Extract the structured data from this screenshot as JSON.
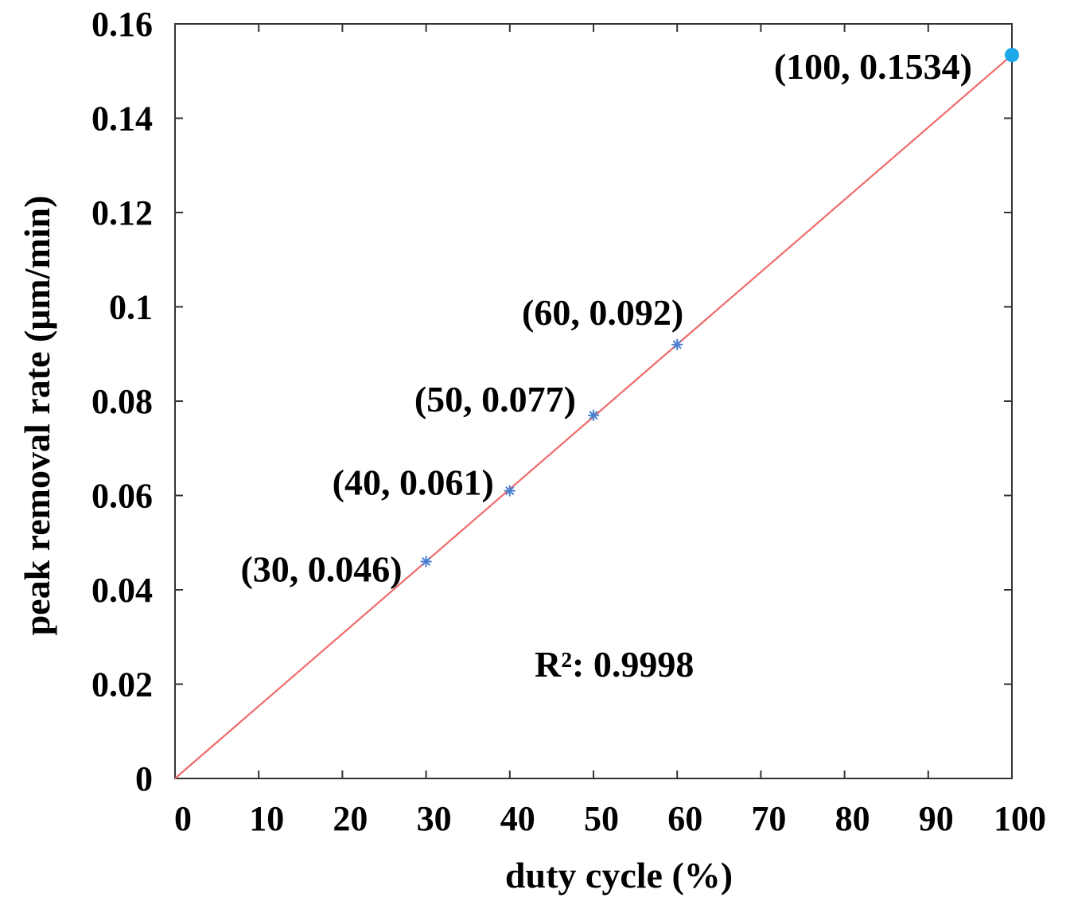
{
  "chart_data": {
    "type": "scatter",
    "xlabel": "duty cycle (%)",
    "ylabel": "peak removal rate (μm/min)",
    "xlim": [
      0,
      100
    ],
    "ylim": [
      0,
      0.16
    ],
    "x_ticks": [
      0,
      10,
      20,
      30,
      40,
      50,
      60,
      70,
      80,
      90,
      100
    ],
    "x_tick_labels": [
      "0",
      "10",
      "20",
      "30",
      "40",
      "50",
      "60",
      "70",
      "80",
      "90",
      "100"
    ],
    "y_ticks": [
      0,
      0.02,
      0.04,
      0.06,
      0.08,
      0.1,
      0.12,
      0.14,
      0.16
    ],
    "y_tick_labels": [
      "0",
      "0.02",
      "0.04",
      "0.06",
      "0.08",
      "0.1",
      "0.12",
      "0.14",
      "0.16"
    ],
    "grid": false,
    "series": [
      {
        "marker": "asterisk",
        "color": "#4a7fd0",
        "x": [
          30,
          40,
          50,
          60
        ],
        "y": [
          0.046,
          0.061,
          0.077,
          0.092
        ]
      },
      {
        "marker": "dot",
        "color": "#1aa8e8",
        "x": [
          100
        ],
        "y": [
          0.1534
        ]
      }
    ],
    "fit_line": {
      "color": "#f06b6b",
      "x": [
        0,
        100
      ],
      "y": [
        0,
        0.1534
      ]
    },
    "point_labels": [
      {
        "text": "(30, 0.046)",
        "x": 30,
        "y": 0.046
      },
      {
        "text": "(40, 0.061)",
        "x": 40,
        "y": 0.061
      },
      {
        "text": "(50, 0.077)",
        "x": 50,
        "y": 0.077
      },
      {
        "text": "(60, 0.092)",
        "x": 60,
        "y": 0.092
      },
      {
        "text": "(100, 0.1534)",
        "x": 100,
        "y": 0.1534
      }
    ],
    "annotation": "R²: 0.9998"
  }
}
